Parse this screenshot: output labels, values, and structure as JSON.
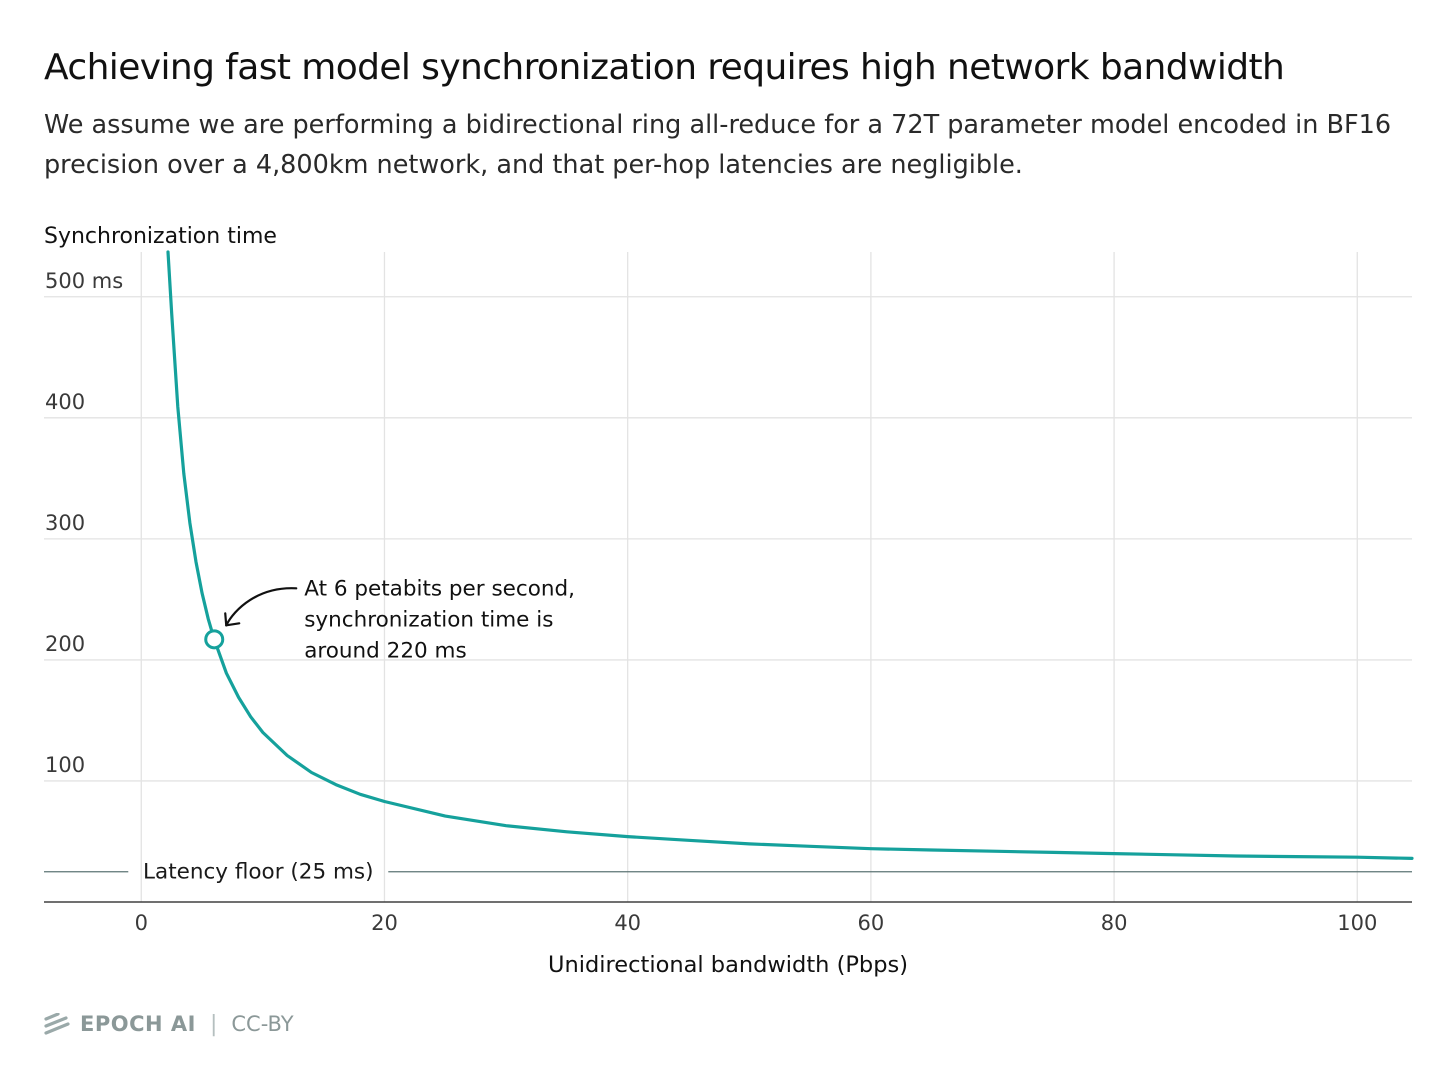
{
  "header": {
    "title": "Achieving fast model synchronization requires high network bandwidth",
    "subtitle": "We assume we are performing a bidirectional ring all-reduce for a 72T parameter model encoded in BF16 precision over a 4,800km network, and that per-hop latencies are negligible."
  },
  "chart_data": {
    "type": "line",
    "title": "Achieving fast model synchronization requires high network bandwidth",
    "ylabel": "Synchronization time",
    "xlabel": "Unidirectional bandwidth (Pbps)",
    "xlim": [
      -8,
      104.5
    ],
    "ylim": [
      0,
      537
    ],
    "x_ticks": [
      0,
      20,
      40,
      60,
      80,
      100
    ],
    "x_tick_labels": [
      "0",
      "20",
      "40",
      "60",
      "80",
      "100"
    ],
    "y_ticks": [
      100,
      200,
      300,
      400,
      500
    ],
    "y_tick_labels": [
      "100",
      "200",
      "300",
      "400",
      "500 ms"
    ],
    "grid": true,
    "series": [
      {
        "name": "Synchronization time",
        "color": "#15a19c",
        "x": [
          2.2,
          2.5,
          3,
          3.5,
          4,
          4.5,
          5,
          5.5,
          6,
          7,
          8,
          9,
          10,
          12,
          14,
          16,
          18,
          20,
          25,
          30,
          35,
          40,
          45,
          50,
          55,
          60,
          65,
          70,
          75,
          80,
          85,
          90,
          95,
          100,
          104.5
        ],
        "y": [
          548,
          486,
          409,
          354,
          313,
          281,
          255,
          234,
          217,
          189,
          169,
          153,
          140,
          121,
          107,
          97,
          89,
          83,
          71,
          63,
          58,
          54,
          51,
          48,
          46,
          44,
          43,
          42,
          41,
          40,
          39,
          38,
          37.5,
          37,
          36
        ]
      }
    ],
    "reference_line": {
      "label": "Latency floor (25 ms)",
      "y": 25,
      "color": "#5d7474"
    },
    "highlight_point": {
      "x": 6,
      "y": 217,
      "color": "#15a19c"
    },
    "annotation": {
      "lines": [
        "At 6 petabits per second,",
        "synchronization time is",
        "around 220 ms"
      ]
    },
    "colors": {
      "grid": "#e3e3e3",
      "axis": "#404040",
      "tick_text": "#3a3a3a"
    }
  },
  "footer": {
    "brand": "EPOCH AI",
    "separator": "|",
    "license": "CC-BY"
  }
}
